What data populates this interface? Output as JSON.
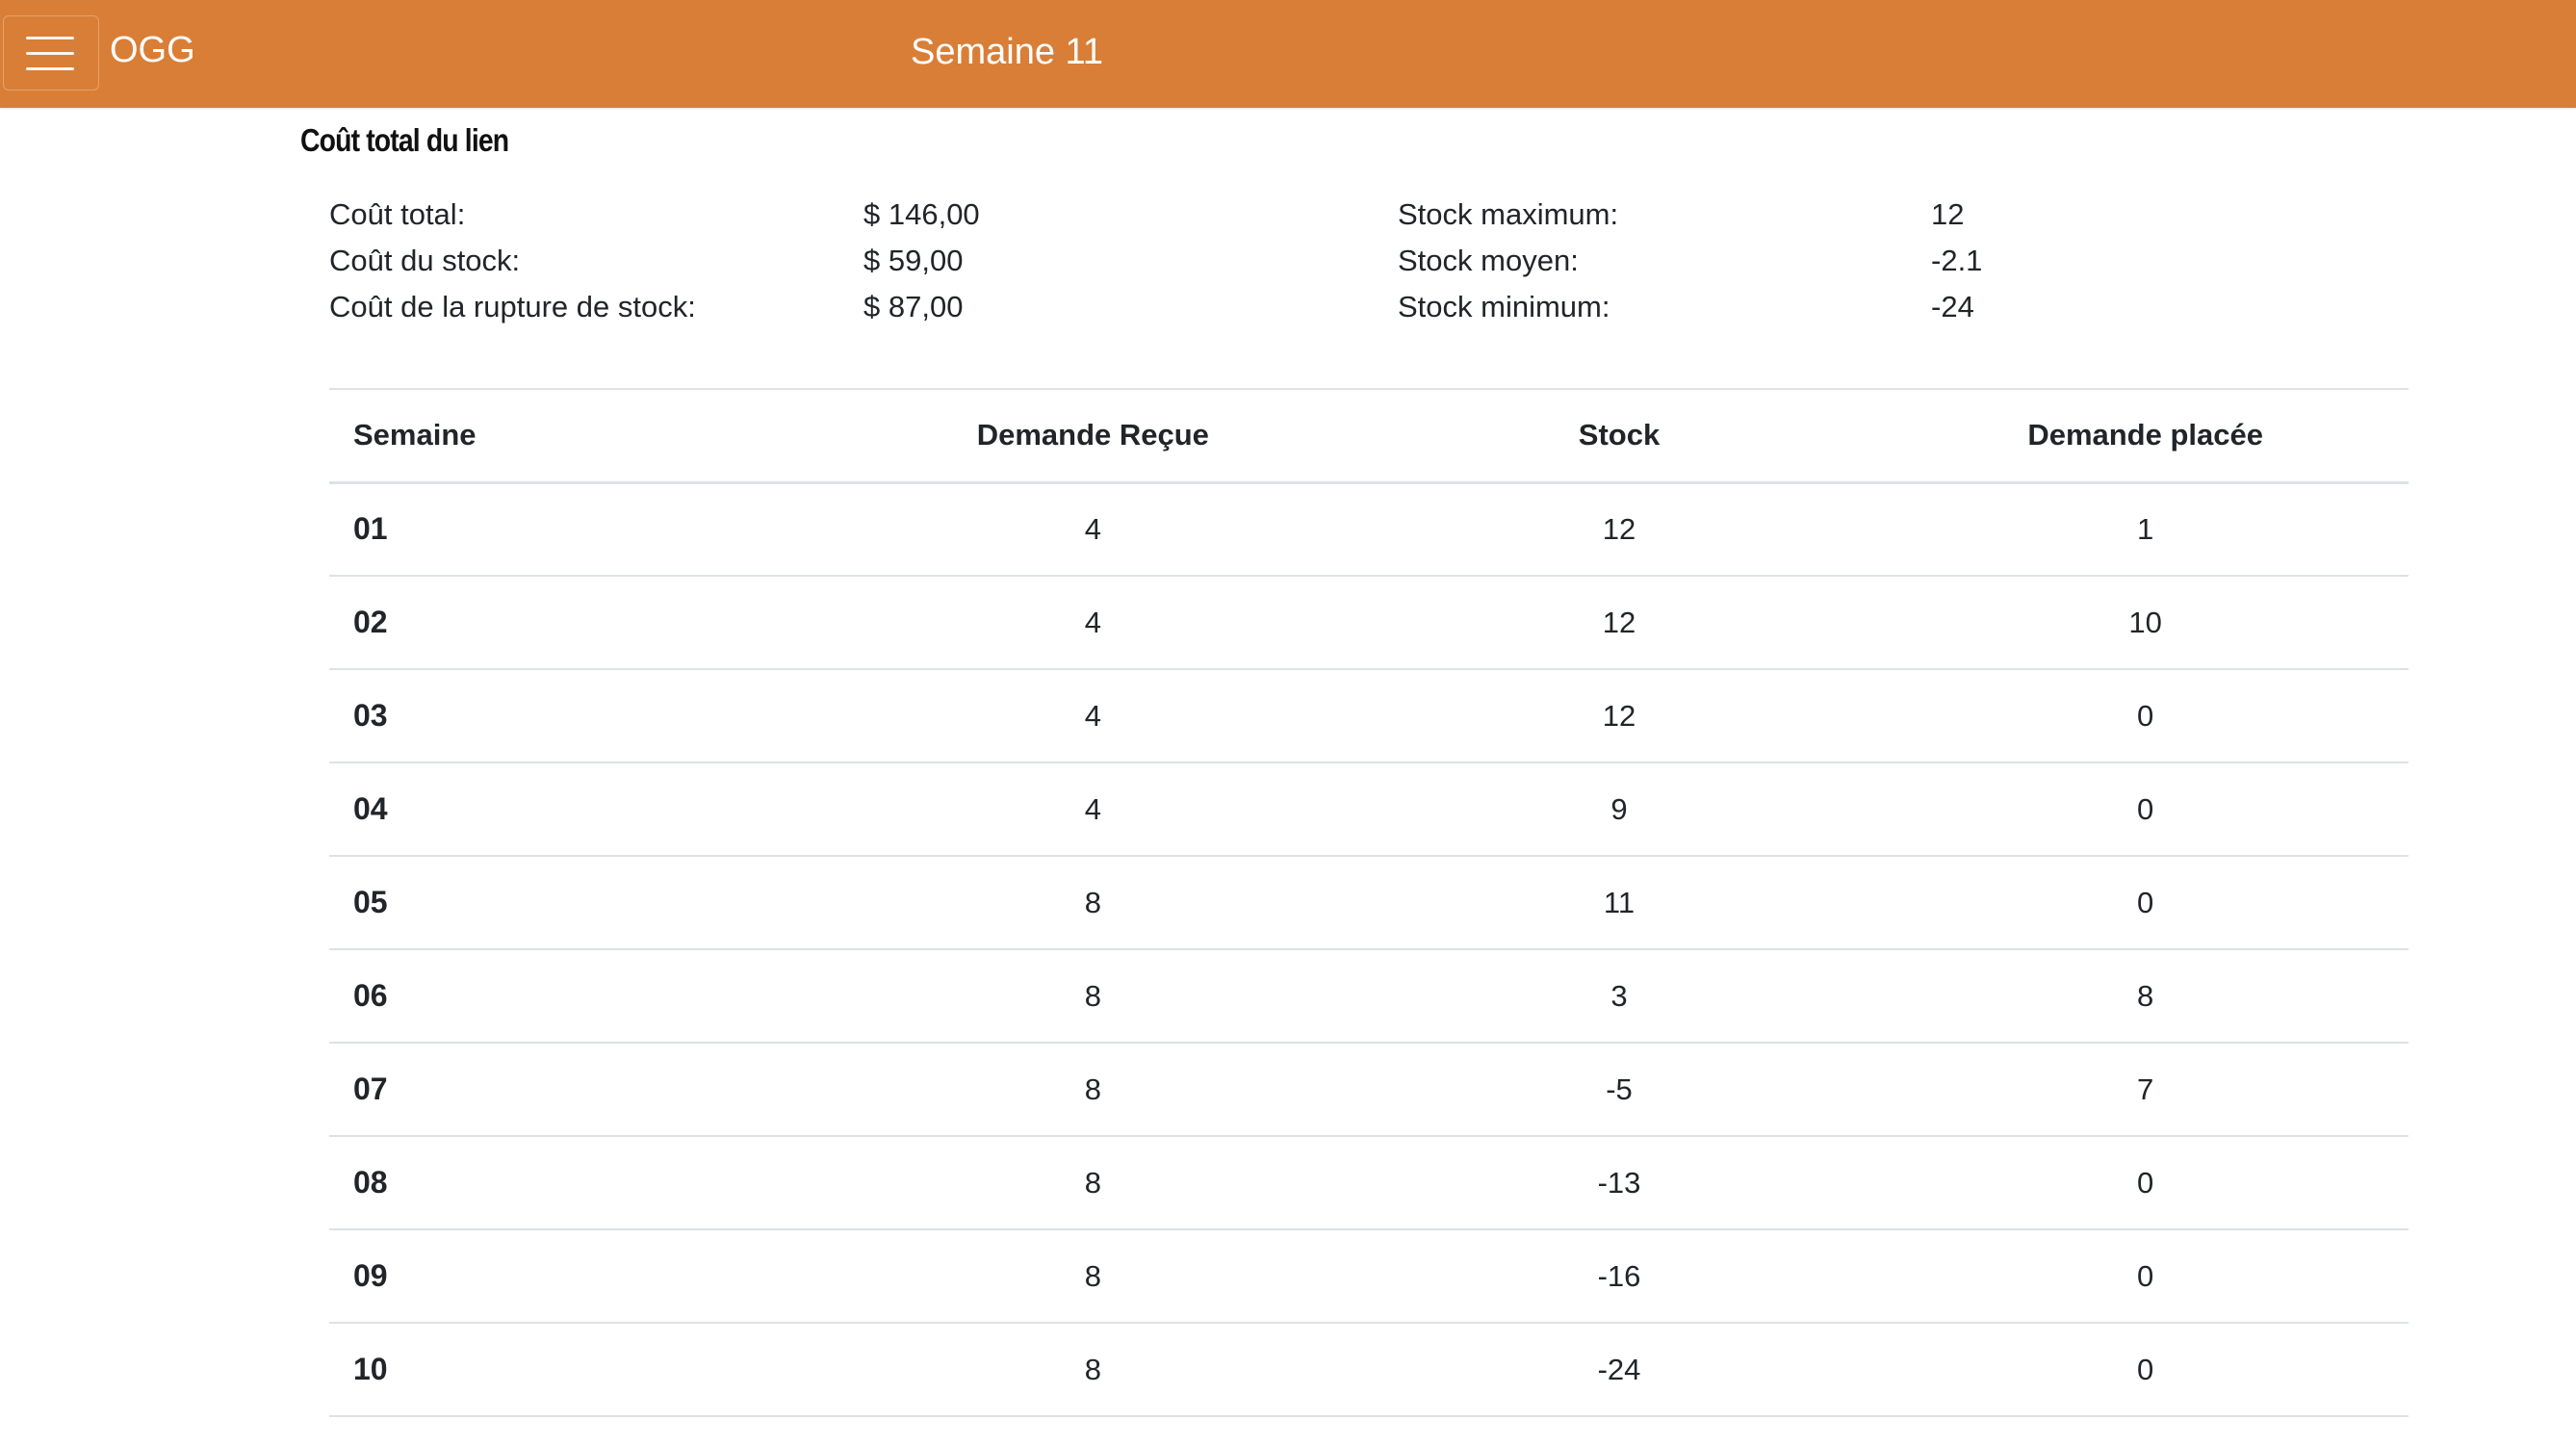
{
  "navbar": {
    "brand": "OGG",
    "title": "Semaine 11",
    "accent_color": "#d97e37",
    "menu_icon": "hamburger-menu-icon"
  },
  "summary": {
    "title": "Coût total du lien",
    "left": [
      {
        "label": "Coût total:",
        "value": "$ 146,00"
      },
      {
        "label": "Coût du stock:",
        "value": "$ 59,00"
      },
      {
        "label": "Coût de la rupture de stock:",
        "value": "$ 87,00"
      }
    ],
    "right": [
      {
        "label": "Stock maximum:",
        "value": "12"
      },
      {
        "label": "Stock moyen:",
        "value": "-2.1"
      },
      {
        "label": "Stock minimum:",
        "value": "-24"
      }
    ]
  },
  "table": {
    "headers": [
      "Semaine",
      "Demande Reçue",
      "Stock",
      "Demande placée"
    ],
    "rows": [
      [
        "01",
        "4",
        "12",
        "1"
      ],
      [
        "02",
        "4",
        "12",
        "10"
      ],
      [
        "03",
        "4",
        "12",
        "0"
      ],
      [
        "04",
        "4",
        "9",
        "0"
      ],
      [
        "05",
        "8",
        "11",
        "0"
      ],
      [
        "06",
        "8",
        "3",
        "8"
      ],
      [
        "07",
        "8",
        "-5",
        "7"
      ],
      [
        "08",
        "8",
        "-13",
        "0"
      ],
      [
        "09",
        "8",
        "-16",
        "0"
      ],
      [
        "10",
        "8",
        "-24",
        "0"
      ]
    ]
  }
}
